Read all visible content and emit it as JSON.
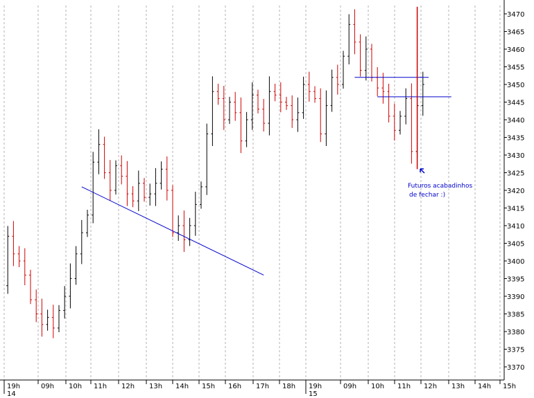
{
  "chart_data": {
    "type": "bar",
    "subtype": "ohlc",
    "y_axis": {
      "ticks": [
        3370,
        3375,
        3380,
        3385,
        3390,
        3395,
        3400,
        3405,
        3410,
        3415,
        3420,
        3425,
        3430,
        3435,
        3440,
        3445,
        3450,
        3455,
        3460,
        3465,
        3470
      ],
      "range": [
        3365,
        3474
      ]
    },
    "x_axis": {
      "labels": [
        "19h",
        "09h",
        "10h",
        "11h",
        "12h",
        "13h",
        "14h",
        "15h",
        "16h",
        "17h",
        "18h",
        "19h",
        "09h",
        "10h",
        "11h",
        "12h",
        "13h",
        "14h",
        "15h"
      ],
      "day_labels": [
        {
          "text": "14",
          "at": "19h"
        },
        {
          "text": "15",
          "at": "19h"
        }
      ]
    },
    "colors": {
      "up": "#000000",
      "down": "#cc0000",
      "lines": "#0000cc",
      "vertical": "#cc0000",
      "grid": "#b0b0b0"
    },
    "price_path": [
      3393,
      3407,
      3402,
      3400,
      3396,
      3389,
      3385,
      3382,
      3384,
      3381,
      3386,
      3390,
      3395,
      3402,
      3408,
      3413,
      3428,
      3433,
      3425,
      3420,
      3427,
      3424,
      3419,
      3417,
      3422,
      3418,
      3419,
      3422,
      3426,
      3420,
      3408,
      3410,
      3406,
      3410,
      3416,
      3421,
      3436,
      3448,
      3446,
      3440,
      3445,
      3442,
      3434,
      3440,
      3447,
      3443,
      3439,
      3448,
      3447,
      3445,
      3444,
      3440,
      3442,
      3450,
      3448,
      3446,
      3436,
      3444,
      3452,
      3450,
      3458,
      3467,
      3462,
      3454,
      3460,
      3452,
      3449,
      3448,
      3441,
      3437,
      3441,
      3446,
      3431,
      3444,
      3450
    ],
    "annotations": [
      {
        "text": "Futuros acabadinhos",
        "line": 1
      },
      {
        "text": "de fechar :)",
        "line": 2
      }
    ],
    "drawn_lines": [
      {
        "name": "descending-trendline",
        "from": {
          "bar": 14,
          "y": 3421
        },
        "to": {
          "bar": 46,
          "y": 3396
        }
      },
      {
        "name": "horizontal-line-upper",
        "from": {
          "bar": 62,
          "y": 3452
        },
        "to": {
          "bar": 75,
          "y": 3452
        }
      },
      {
        "name": "horizontal-line-lower",
        "from": {
          "bar": 66,
          "y": 3446.5
        },
        "to": {
          "bar": 79,
          "y": 3446.5
        }
      }
    ],
    "vertical_line": {
      "bar": 73,
      "y_from": 3472,
      "y_to": 3426
    }
  }
}
